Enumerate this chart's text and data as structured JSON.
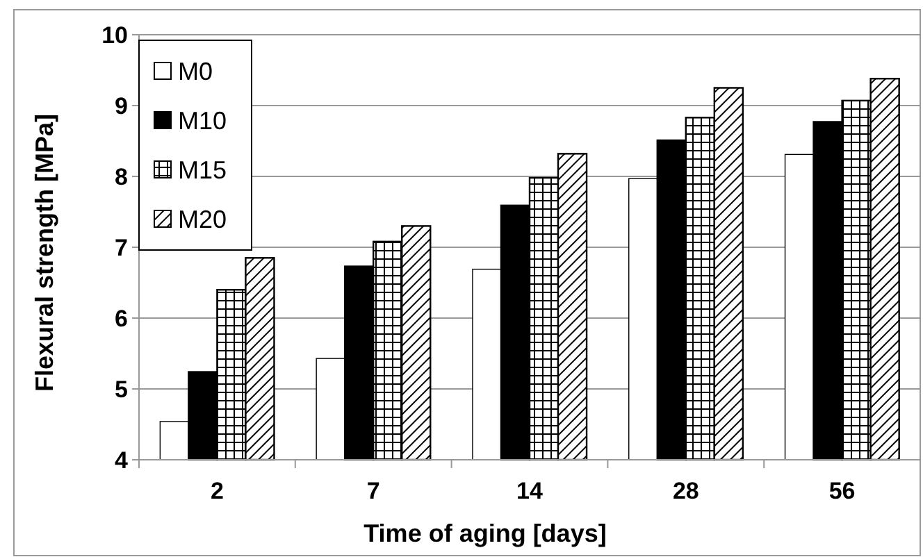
{
  "chart_data": {
    "type": "bar",
    "xlabel": "Time of aging [days]",
    "ylabel": "Flexural strength [MPa]",
    "categories": [
      "2",
      "7",
      "14",
      "28",
      "56"
    ],
    "series": [
      {
        "name": "M0",
        "color": "#ffffff",
        "values": [
          4.54,
          5.43,
          6.69,
          7.97,
          8.31
        ]
      },
      {
        "name": "M10",
        "color": "#000000",
        "values": [
          5.24,
          6.73,
          7.59,
          8.51,
          8.77
        ]
      },
      {
        "name": "M15",
        "color": "#000000",
        "values": [
          6.4,
          7.08,
          7.98,
          8.83,
          9.07
        ]
      },
      {
        "name": "M20",
        "color": "#000000",
        "values": [
          6.85,
          7.3,
          8.32,
          9.25,
          9.38
        ]
      }
    ],
    "ylim": [
      4,
      10
    ],
    "yticks": [
      4,
      5,
      6,
      7,
      8,
      9,
      10
    ],
    "grid": "y",
    "legend": "top left"
  }
}
